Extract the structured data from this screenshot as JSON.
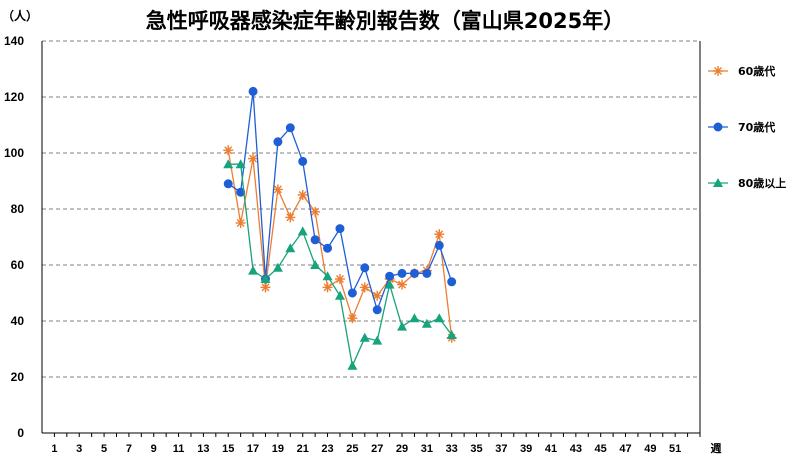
{
  "chart_data": {
    "type": "line",
    "title": "急性呼吸器感染症年齢別報告数（富山県2025年）",
    "ylabel": "（人）",
    "xlabel": "週",
    "ylim": [
      0,
      140
    ],
    "yticks": [
      0,
      20,
      40,
      60,
      80,
      100,
      120,
      140
    ],
    "xlim": [
      0,
      53
    ],
    "xticks": [
      1,
      3,
      5,
      7,
      9,
      11,
      13,
      15,
      17,
      19,
      21,
      23,
      25,
      27,
      29,
      31,
      33,
      35,
      37,
      39,
      41,
      43,
      45,
      47,
      49,
      51
    ],
    "grid": "horizontal dashed",
    "legend_position": "right",
    "x": [
      15,
      16,
      17,
      18,
      19,
      20,
      21,
      22,
      23,
      24,
      25,
      26,
      27,
      28,
      29,
      30,
      31,
      32,
      33
    ],
    "series": [
      {
        "name": "60歳代",
        "color": "#ED7D31",
        "marker": "asterisk",
        "values": [
          101,
          75,
          98,
          52,
          87,
          77,
          85,
          79,
          52,
          55,
          41,
          52,
          49,
          55,
          53,
          57,
          58,
          71,
          34
        ]
      },
      {
        "name": "70歳代",
        "color": "#1F5FD6",
        "marker": "circle",
        "values": [
          89,
          86,
          122,
          55,
          104,
          109,
          97,
          69,
          66,
          73,
          50,
          59,
          44,
          56,
          57,
          57,
          57,
          67,
          54
        ]
      },
      {
        "name": "80歳以上",
        "color": "#17A37B",
        "marker": "triangle",
        "values": [
          96,
          96,
          58,
          55,
          59,
          66,
          72,
          60,
          56,
          49,
          24,
          34,
          33,
          53,
          38,
          41,
          39,
          41,
          35
        ]
      }
    ]
  }
}
